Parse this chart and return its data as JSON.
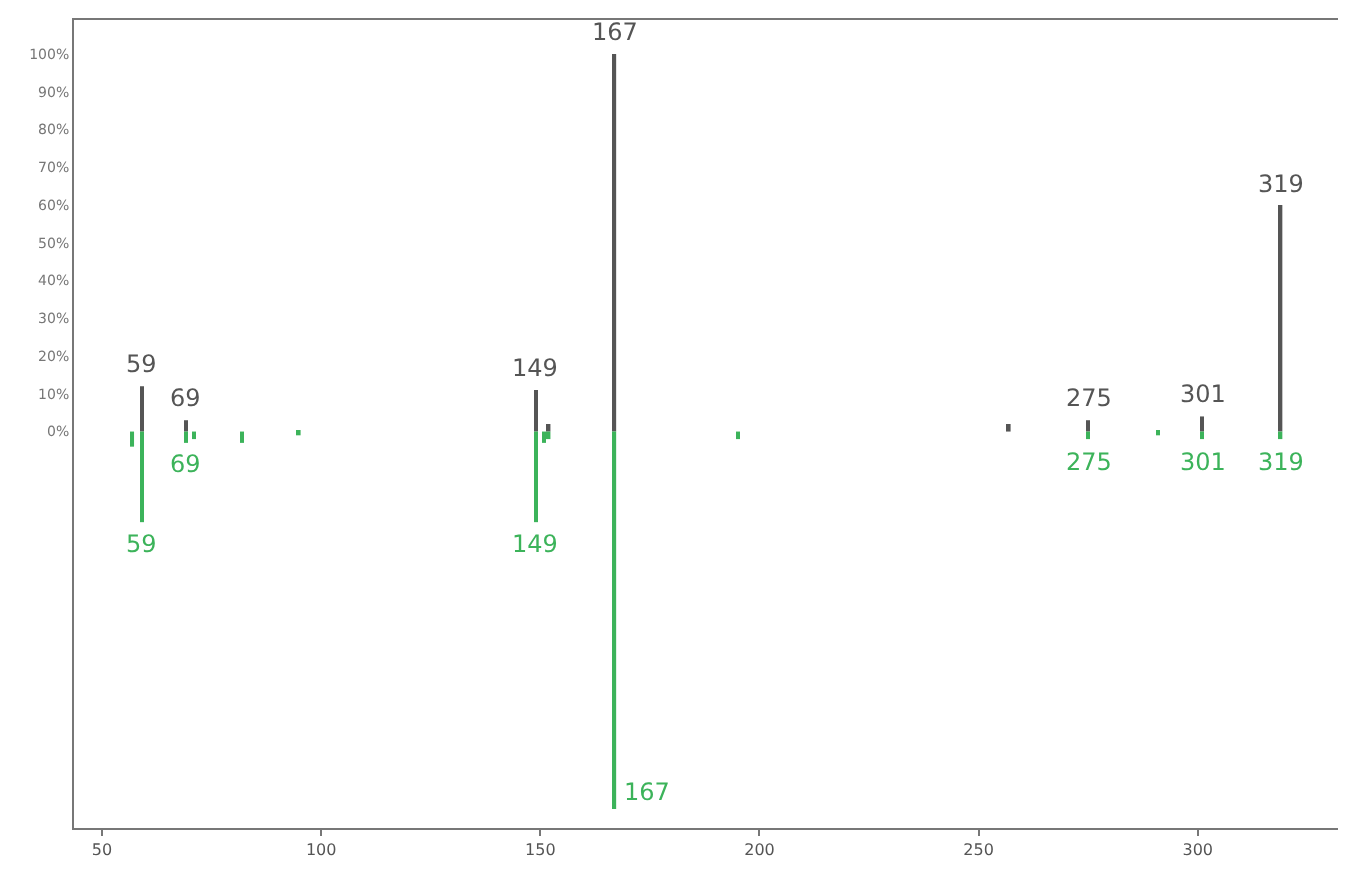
{
  "chart_data": {
    "type": "bar",
    "x": [
      57,
      59,
      69,
      71,
      82,
      95,
      149,
      151,
      152,
      167,
      195,
      257,
      275,
      291,
      301,
      319
    ],
    "series": [
      {
        "color": "#555555",
        "values": [
          null,
          12,
          3,
          null,
          null,
          null,
          11,
          null,
          2,
          100,
          null,
          2,
          3,
          null,
          4,
          60
        ]
      },
      {
        "color": "#3cb35a",
        "values": [
          -4,
          -24,
          -3,
          -2,
          -3,
          -1,
          -24,
          -3,
          -2,
          -100,
          -2,
          null,
          -2,
          -1,
          -2,
          -2
        ]
      }
    ],
    "annotations": [
      {
        "text": "59",
        "x": 59,
        "y": 12
      },
      {
        "text": "69",
        "x": 69,
        "y": 3
      },
      {
        "text": "149",
        "x": 149,
        "y": 11
      },
      {
        "text": "167",
        "x": 167,
        "y": 100
      },
      {
        "text": "275",
        "x": 275,
        "y": 3
      },
      {
        "text": "301",
        "x": 301,
        "y": 4
      },
      {
        "text": "319",
        "x": 319,
        "y": 60
      },
      {
        "text": "59",
        "x": 59,
        "y": -24
      },
      {
        "text": "69",
        "x": 69,
        "y": -3
      },
      {
        "text": "149",
        "x": 149,
        "y": -24
      },
      {
        "text": "167",
        "x": 167,
        "y": -100
      },
      {
        "text": "275",
        "x": 275,
        "y": -2
      },
      {
        "text": "301",
        "x": 301,
        "y": -2
      },
      {
        "text": "319",
        "x": 319,
        "y": -2
      }
    ],
    "xlim": [
      43.6,
      332
    ],
    "xticks": [
      50,
      100,
      150,
      200,
      250,
      300
    ],
    "ylim": [
      -105,
      109
    ],
    "yticks": [
      {
        "value": 0,
        "label": "0%"
      },
      {
        "value": 10,
        "label": "10%"
      },
      {
        "value": 20,
        "label": "20%"
      },
      {
        "value": 30,
        "label": "30%"
      },
      {
        "value": 40,
        "label": "40%"
      },
      {
        "value": 50,
        "label": "50%"
      },
      {
        "value": 60,
        "label": "60%"
      },
      {
        "value": 70,
        "label": "70%"
      },
      {
        "value": 80,
        "label": "80%"
      },
      {
        "value": 90,
        "label": "90%"
      },
      {
        "value": 100,
        "label": "100%"
      }
    ]
  }
}
